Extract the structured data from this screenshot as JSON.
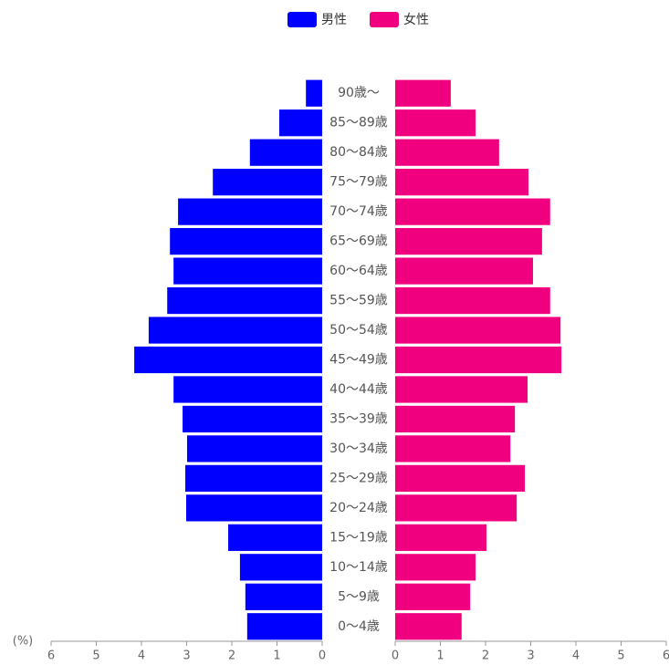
{
  "chart_data": {
    "type": "bar",
    "orientation": "horizontal-pyramid",
    "x_label": "(%)",
    "categories": [
      "90歳〜",
      "85〜89歳",
      "80〜84歳",
      "75〜79歳",
      "70〜74歳",
      "65〜69歳",
      "60〜64歳",
      "55〜59歳",
      "50〜54歳",
      "45〜49歳",
      "40〜44歳",
      "35〜39歳",
      "30〜34歳",
      "25〜29歳",
      "20〜24歳",
      "15〜19歳",
      "10〜14歳",
      "5〜9歳",
      "0〜4歳"
    ],
    "series": [
      {
        "name": "男性",
        "color": "#0000ff",
        "side": "left",
        "values": [
          0.36,
          0.95,
          1.6,
          2.42,
          3.19,
          3.37,
          3.29,
          3.43,
          3.84,
          4.16,
          3.29,
          3.09,
          2.99,
          3.03,
          3.01,
          2.08,
          1.82,
          1.7,
          1.66
        ]
      },
      {
        "name": "女性",
        "color": "#f0007f",
        "side": "right",
        "values": [
          1.23,
          1.78,
          2.3,
          2.95,
          3.43,
          3.25,
          3.05,
          3.43,
          3.66,
          3.68,
          2.93,
          2.65,
          2.55,
          2.87,
          2.69,
          2.02,
          1.78,
          1.66,
          1.47
        ]
      }
    ],
    "xlim": [
      0,
      6
    ],
    "xticks": [
      0,
      1,
      2,
      3,
      4,
      5,
      6
    ],
    "legend": "top"
  }
}
